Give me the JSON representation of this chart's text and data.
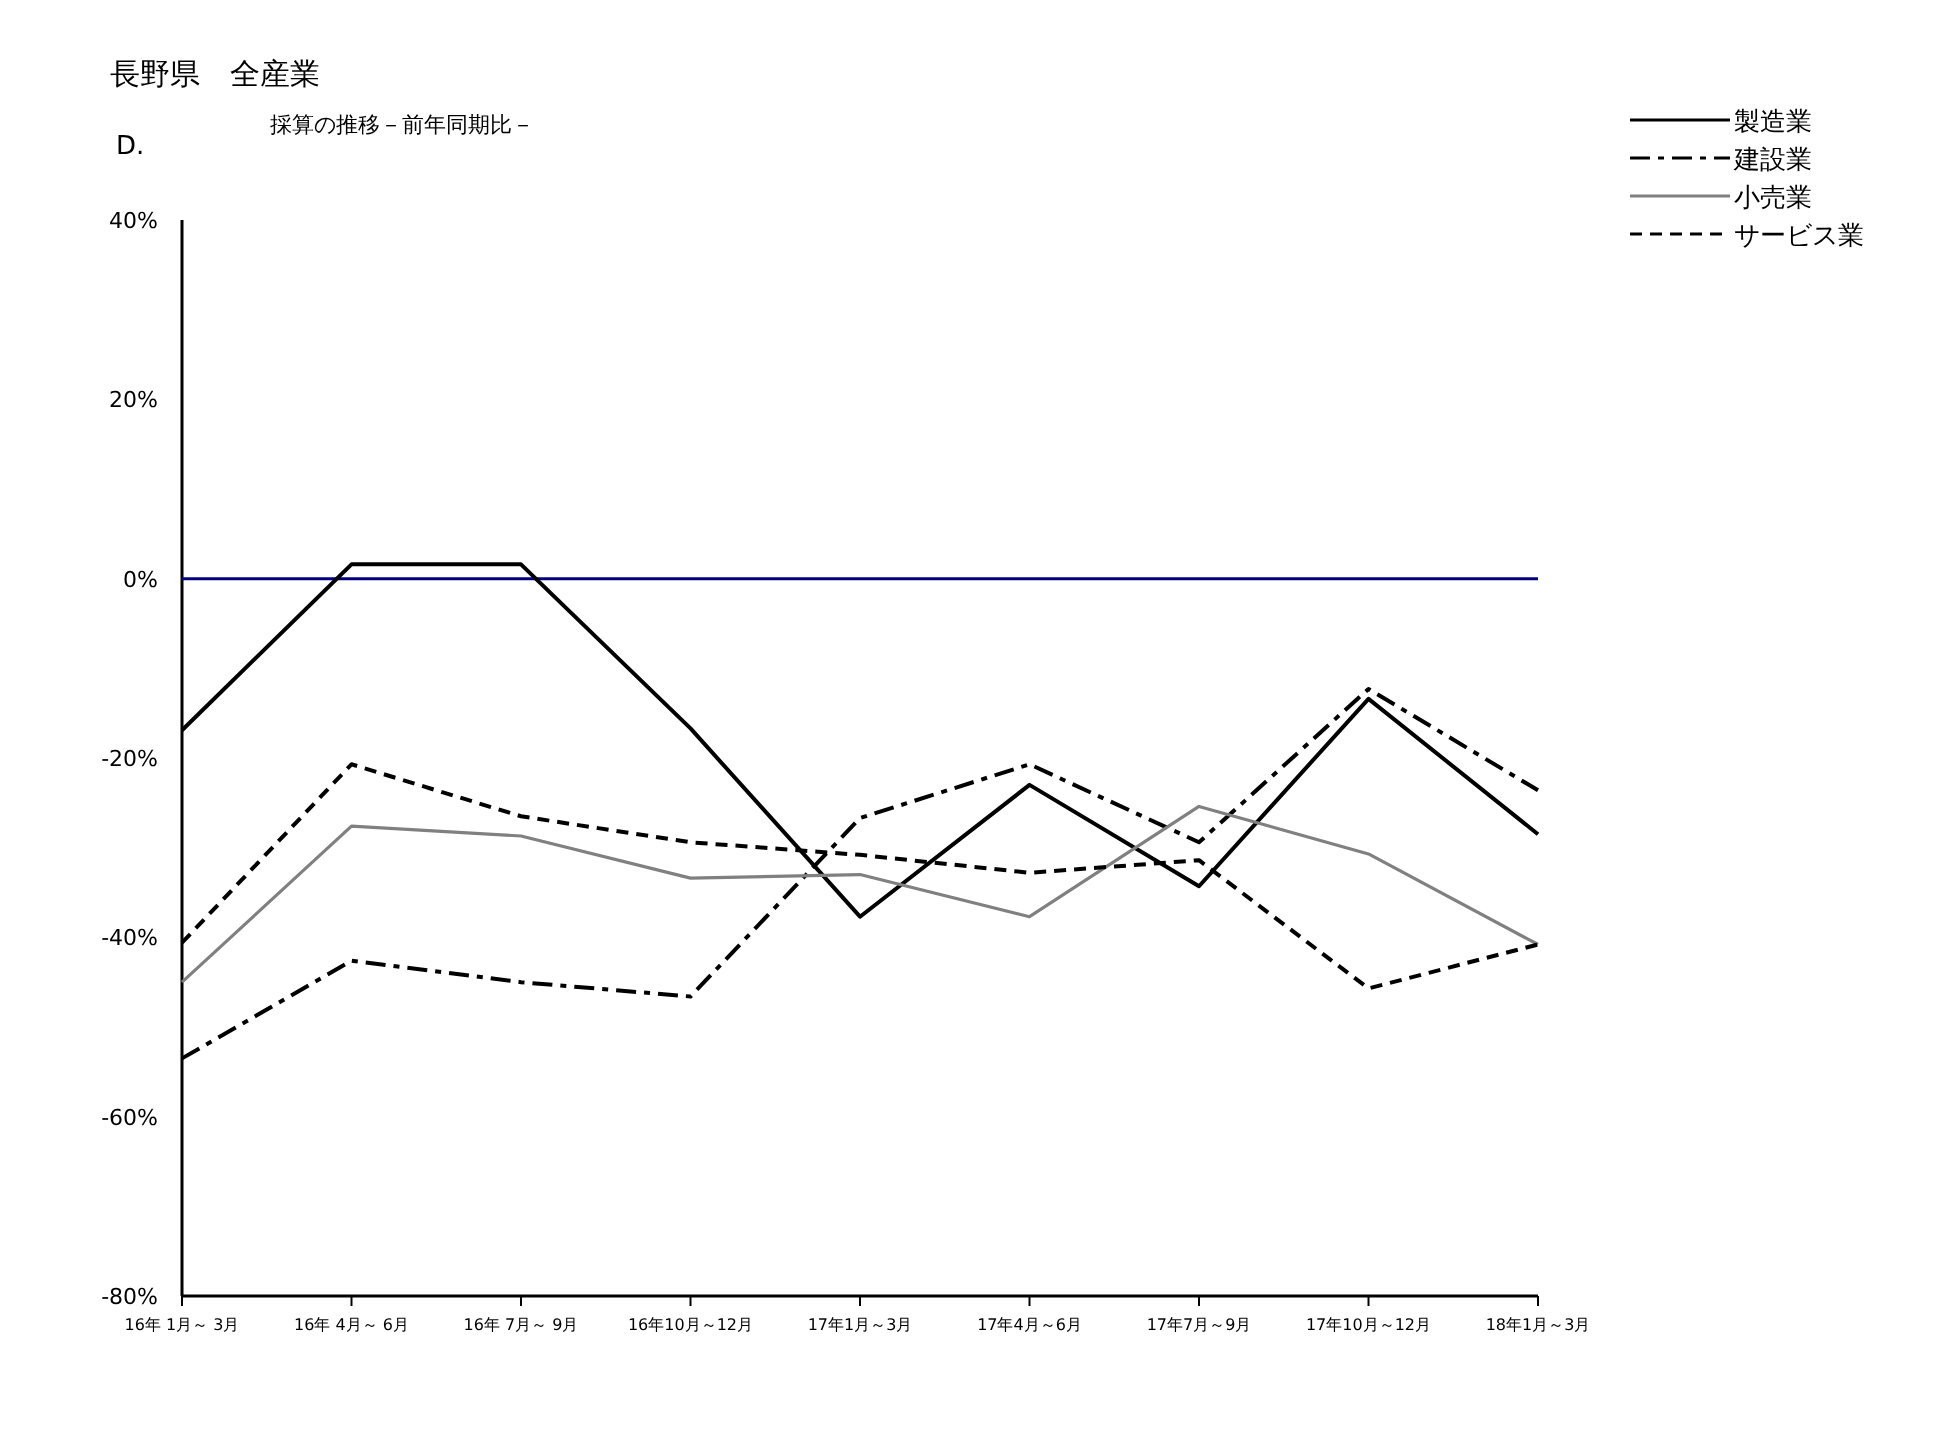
{
  "chart_data": {
    "type": "line",
    "title": "長野県　全産業",
    "subtitle": "採算の推移－前年同期比－",
    "annotations": [
      "D."
    ],
    "categories": [
      "16年 1月～ 3月",
      "16年 4月～ 6月",
      "16年 7月～ 9月",
      "16年10月～12月",
      "17年1月～3月",
      "17年4月～6月",
      "17年7月～9月",
      "17年10月～12月",
      "18年1月～3月"
    ],
    "series": [
      {
        "name": "製造業",
        "color": "#000000",
        "line_style": "solid",
        "values": [
          -16.9,
          1.6,
          1.6,
          -16.7,
          -37.7,
          -23.0,
          -34.3,
          -13.4,
          -28.5
        ]
      },
      {
        "name": "建設業",
        "color": "#000000",
        "line_style": "dashdot",
        "values": [
          -53.5,
          -42.6,
          -45.0,
          -46.6,
          -26.7,
          -20.7,
          -29.4,
          -12.3,
          -23.6
        ]
      },
      {
        "name": "小売業",
        "color": "#808080",
        "line_style": "solid",
        "values": [
          -45.0,
          -27.6,
          -28.7,
          -33.4,
          -33.0,
          -37.7,
          -25.4,
          -30.7,
          -40.8
        ]
      },
      {
        "name": "サービス業",
        "color": "#000000",
        "line_style": "dashed",
        "values": [
          -40.6,
          -20.7,
          -26.5,
          -29.4,
          -30.8,
          -32.8,
          -31.4,
          -45.7,
          -40.8
        ]
      }
    ],
    "ylim": [
      -80,
      40
    ],
    "yticks": [
      {
        "value": 40,
        "label": "40%"
      },
      {
        "value": 20,
        "label": "20%"
      },
      {
        "value": 0,
        "label": "0%"
      },
      {
        "value": -20,
        "label": "-20%"
      },
      {
        "value": -40,
        "label": "-40%"
      },
      {
        "value": -60,
        "label": "-60%"
      },
      {
        "value": -80,
        "label": "-80%"
      }
    ],
    "ref_lines": [
      {
        "axis": "y",
        "value": 0,
        "color": "#000080"
      }
    ],
    "grid": false,
    "legend": "top right",
    "marker": "none"
  }
}
